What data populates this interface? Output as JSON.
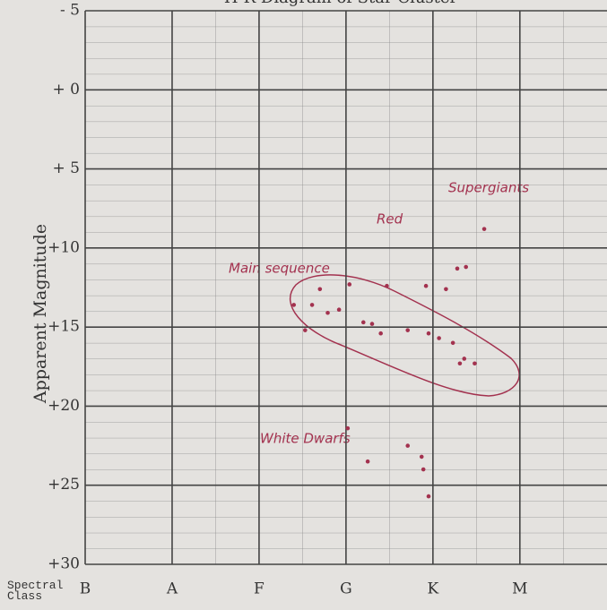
{
  "chart_data": {
    "type": "scatter",
    "title": "H-R Diagram of Star Cluster",
    "y_label": "Apparent Magnitude",
    "x_label": "Spectral Class",
    "xlim": [
      0,
      5.93
    ],
    "xticks": [
      {
        "value": 0,
        "label": "B"
      },
      {
        "value": 1,
        "label": "A"
      },
      {
        "value": 2,
        "label": "F"
      },
      {
        "value": 3,
        "label": "G"
      },
      {
        "value": 4,
        "label": "K"
      },
      {
        "value": 5,
        "label": "M"
      }
    ],
    "ylim": [
      -5,
      30
    ],
    "y_inverted": true,
    "yticks": [
      {
        "value": -5,
        "label": "- 5"
      },
      {
        "value": 0,
        "label": "+ 0"
      },
      {
        "value": 5,
        "label": "+ 5"
      },
      {
        "value": 10,
        "label": "+10"
      },
      {
        "value": 15,
        "label": "+15"
      },
      {
        "value": 20,
        "label": "+20"
      },
      {
        "value": 25,
        "label": "+25"
      },
      {
        "value": 30,
        "label": "+30"
      }
    ],
    "grid": true,
    "color": "#a3324f",
    "x": [
      2.7,
      2.61,
      2.4,
      2.79,
      2.92,
      2.53,
      3.04,
      3.2,
      3.3,
      3.4,
      3.47,
      3.71,
      3.92,
      3.95,
      4.07,
      4.15,
      4.23,
      4.31,
      4.36,
      4.48,
      4.28,
      4.38,
      3.02,
      3.25,
      3.71,
      3.87,
      3.89,
      3.95,
      4.59
    ],
    "y": [
      12.6,
      13.6,
      13.6,
      14.1,
      13.9,
      15.2,
      12.3,
      14.7,
      14.8,
      15.4,
      12.4,
      15.2,
      12.4,
      15.4,
      15.7,
      12.6,
      16.0,
      17.3,
      17.0,
      17.3,
      11.3,
      11.2,
      21.4,
      23.5,
      22.5,
      23.2,
      24.0,
      25.7,
      8.8
    ],
    "annotations": [
      "Main sequence",
      "Red",
      "Supergiants",
      "White Dwarfs"
    ]
  }
}
